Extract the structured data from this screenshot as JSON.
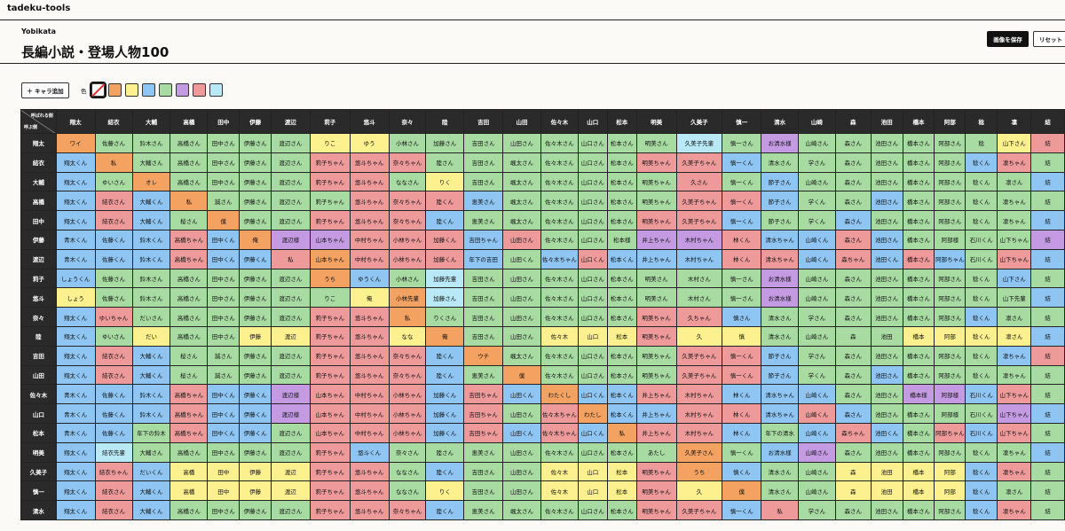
{
  "app": {
    "name": "tadeku-tools"
  },
  "header": {
    "subtitle": "Yobikata",
    "title": "長編小説・登場人物100",
    "save_label": "画像を保存",
    "reset_label": "リセット"
  },
  "toolbar": {
    "add_label": "＋ キャラ追加",
    "color_label": "色",
    "swatches": [
      {
        "name": "none",
        "color": "#ffffff"
      },
      {
        "name": "orange",
        "color": "#f4a261"
      },
      {
        "name": "yellow",
        "color": "#fdf08f"
      },
      {
        "name": "blue",
        "color": "#8ec5f2"
      },
      {
        "name": "green",
        "color": "#a7dba1"
      },
      {
        "name": "purple",
        "color": "#c49be3"
      },
      {
        "name": "red",
        "color": "#ef9a9a"
      },
      {
        "name": "cyan",
        "color": "#b9e8f7"
      }
    ]
  },
  "grid": {
    "corner_called": "呼ばれる側",
    "corner_caller": "呼ぶ側",
    "colors": {
      "o": "#f4a261",
      "y": "#fdf08f",
      "b": "#8ec5f2",
      "g": "#a7dba1",
      "p": "#c49be3",
      "r": "#ef9a9a",
      "c": "#b9e8f7",
      "w": "#ffffff"
    },
    "columns": [
      "翔太",
      "結衣",
      "大輔",
      "高橋",
      "田中",
      "伊藤",
      "渡辺",
      "莉子",
      "悠斗",
      "奈々",
      "陸",
      "吉田",
      "山田",
      "佐々木",
      "山口",
      "松本",
      "明美",
      "久美子",
      "慎一",
      "清水",
      "山崎",
      "森",
      "池田",
      "橋本",
      "阿部",
      "稔",
      "凛",
      "結"
    ],
    "rows": [
      {
        "name": "翔太",
        "cells": [
          "ワイ",
          "佐藤さん",
          "鈴木さん",
          "高橋さん",
          "田中さん",
          "伊藤さん",
          "渡辺さん",
          "りこ",
          "ゆう",
          "小林さん",
          "加藤さん",
          "吉田さん",
          "山田さん",
          "佐々木さん",
          "山口さん",
          "松本さん",
          "明美さん",
          "久美子先輩",
          "慎一さん",
          "お清水様",
          "山崎さん",
          "森さん",
          "池田さん",
          "橋本さん",
          "阿部さん",
          "稔",
          "山下さん",
          "結"
        ],
        "colors": "oggggggyyggggggggcgpggggggyrg"
      },
      {
        "name": "結衣",
        "cells": [
          "翔太くん",
          "私",
          "大輔さん",
          "高橋さん",
          "田中さん",
          "伊藤さん",
          "渡辺さん",
          "莉子ちゃん",
          "悠斗ちゃん",
          "奈々ちゃん",
          "陸さん",
          "吉田さん",
          "颯太さん",
          "佐々木さん",
          "山口さん",
          "松本さん",
          "明美ちゃん",
          "久美子ちゃん",
          "慎一くん",
          "清水さん",
          "学さん",
          "森さん",
          "池田さん",
          "橋本さん",
          "阿部さん",
          "稔くん",
          "凛ちゃん",
          "結"
        ],
        "colors": "bogggggrrrggggggrrbggggggbrg"
      },
      {
        "name": "大輔",
        "cells": [
          "翔太くん",
          "ゆいさん",
          "オレ",
          "高橋さん",
          "田中さん",
          "伊藤さん",
          "渡辺さん",
          "莉子ちゃん",
          "悠斗ちゃん",
          "ななさん",
          "りく",
          "吉田さん",
          "颯太さん",
          "佐々木さん",
          "山口さん",
          "松本さん",
          "明美ちゃん",
          "久さん",
          "慎一くん",
          "節子さん",
          "山崎さん",
          "森さん",
          "池田さん",
          "橋本さん",
          "阿部さん",
          "稔くん",
          "凛さん",
          "結"
        ],
        "colors": "bgoggggrrgyggggggrgbgggggggbgg"
      },
      {
        "name": "高橋",
        "cells": [
          "翔太くん",
          "結衣さん",
          "大輔くん",
          "私",
          "誠さん",
          "伊藤さん",
          "渡辺さん",
          "莉子ちゃん",
          "悠斗ちゃん",
          "奈々ちゃん",
          "陸くん",
          "恵美さん",
          "颯太さん",
          "佐々木さん",
          "山口さん",
          "松本さん",
          "明美ちゃん",
          "久美子ちゃん",
          "慎一くん",
          "節子さん",
          "学くん",
          "森さん",
          "池田さん",
          "橋本さん",
          "阿部さん",
          "稔くん",
          "凛ちゃん",
          "結"
        ],
        "colors": "brboggggrrrbgggggrrbggbgggggbrg"
      },
      {
        "name": "田中",
        "cells": [
          "翔太くん",
          "結衣さん",
          "大輔くん",
          "桜さん",
          "僕",
          "伊藤さん",
          "渡辺さん",
          "莉子ちゃん",
          "悠斗ちゃん",
          "奈々ちゃん",
          "陸くん",
          "恵美さん",
          "颯太さん",
          "佐々木さん",
          "山口さん",
          "松本さん",
          "明美ちゃん",
          "久美子ちゃん",
          "慎一くん",
          "節子さん",
          "学くん",
          "森さん",
          "池田さん",
          "橋本さん",
          "阿部さん",
          "稔くん",
          "凛ちゃん",
          "結"
        ],
        "colors": "brbgoggrrrbgggggrrbggbgggggbrg"
      },
      {
        "name": "伊藤",
        "cells": [
          "青木くん",
          "佐藤くん",
          "鈴木くん",
          "高橋ちゃん",
          "田中くん",
          "俺",
          "渡辺様",
          "山本ちゃん",
          "中村ちゃん",
          "小林ちゃん",
          "加藤くん",
          "吉田ちゃん",
          "山田さん",
          "佐々木さん",
          "山口さん",
          "松本様",
          "井上ちゃん",
          "木村ちゃん",
          "林くん",
          "清水ちゃん",
          "山崎くん",
          "森さん",
          "池田さん",
          "橋本さん",
          "阿部様",
          "石川くん",
          "山下ちゃん",
          "結"
        ],
        "colors": "bbbrbopprrrbrgggpprbbrbggggpbrg"
      },
      {
        "name": "渡辺",
        "cells": [
          "青木くん",
          "佐藤くん",
          "鈴木くん",
          "高橋ちゃん",
          "田中くん",
          "伊藤くん",
          "私",
          "山本ちゃん",
          "中村ちゃん",
          "小林ちゃん",
          "加藤くん",
          "年下の吉田",
          "山田くん",
          "佐々木ちゃん",
          "山口くん",
          "松本くん",
          "井上ちゃん",
          "木村ちゃん",
          "林くん",
          "清水ちゃん",
          "山崎くん",
          "森ちゃん",
          "池田くん",
          "橋本さん",
          "阿部ちゃん",
          "石川くん",
          "山下ちゃん",
          "結"
        ],
        "colors": "bbbrbbrorrrbgbrbbbrrbrbrbgrbrg"
      },
      {
        "name": "莉子",
        "cells": [
          "しょうくん",
          "佐藤さん",
          "鈴木さん",
          "高橋さん",
          "田中さん",
          "伊藤さん",
          "渡辺さん",
          "うち",
          "ゆうくん",
          "小林さん",
          "加藤先輩",
          "吉田さん",
          "山田さん",
          "佐々木さん",
          "山口さん",
          "松本さん",
          "明美さん",
          "木村さん",
          "慎一さん",
          "お清水様",
          "山崎さん",
          "森さん",
          "池田さん",
          "橋本さん",
          "阿部さん",
          "稔くん",
          "山下さん",
          "結"
        ],
        "colors": "bggggggobgcggggggggpggggggbgg"
      },
      {
        "name": "悠斗",
        "cells": [
          "しょう",
          "佐藤さん",
          "鈴木さん",
          "高橋さん",
          "田中さん",
          "伊藤さん",
          "渡辺さん",
          "りこ",
          "俺",
          "小林先輩",
          "加藤さん",
          "吉田さん",
          "山田さん",
          "佐々木さん",
          "山口さん",
          "松本さん",
          "明美さん",
          "木村さん",
          "慎一さん",
          "お清水様",
          "山崎さん",
          "森さん",
          "池田さん",
          "橋本さん",
          "阿部さん",
          "稔くん",
          "山下先輩",
          "結"
        ],
        "colors": "ygggggggyocggggggggpgggggggbcg"
      },
      {
        "name": "奈々",
        "cells": [
          "翔太くん",
          "ゆいちゃん",
          "だいさん",
          "高橋さん",
          "田中さん",
          "伊藤さん",
          "渡辺さん",
          "莉子ちゃん",
          "悠斗ちゃん",
          "私",
          "りくさん",
          "吉田さん",
          "山田さん",
          "佐々木さん",
          "山口さん",
          "松本さん",
          "明美ちゃん",
          "久ちゃん",
          "慎さん",
          "清水さん",
          "学さん",
          "森さん",
          "池田さん",
          "橋本さん",
          "阿部さん",
          "稔くん",
          "凛さん",
          "結"
        ],
        "colors": "brgggggrroggggggrrbggggggbgg"
      },
      {
        "name": "陸",
        "cells": [
          "翔太くん",
          "ゆいさん",
          "だい",
          "高橋さん",
          "田中さん",
          "伊藤",
          "渡辺",
          "莉子ちゃん",
          "悠斗ちゃん",
          "なな",
          "俺",
          "吉田さん",
          "山田さん",
          "佐々木",
          "山口",
          "松本",
          "明美ちゃん",
          "久",
          "慎",
          "清水さん",
          "山崎さん",
          "森",
          "池田",
          "橋本",
          "阿部",
          "稔くん",
          "凛さん",
          "結"
        ],
        "colors": "bgyggyyrryoggyyyryyggggyyyybgg"
      },
      {
        "name": "吉田",
        "cells": [
          "翔太くん",
          "結衣さん",
          "大輔くん",
          "桜さん",
          "誠さん",
          "伊藤さん",
          "渡辺さん",
          "莉子ちゃん",
          "悠斗ちゃん",
          "奈々ちゃん",
          "陸くん",
          "ウチ",
          "颯太さん",
          "佐々木さん",
          "山口さん",
          "松本さん",
          "明美ちゃん",
          "久美子ちゃん",
          "慎一くん",
          "節子さん",
          "学さん",
          "森さん",
          "池田さん",
          "橋本さん",
          "阿部さん",
          "稔くん",
          "凛ちゃん",
          "結"
        ],
        "colors": "brbggggrrrbogggggrrbggggggbrg"
      },
      {
        "name": "山田",
        "cells": [
          "翔太くん",
          "結衣さん",
          "大輔くん",
          "桜さん",
          "誠さん",
          "伊藤さん",
          "渡辺さん",
          "莉子ちゃん",
          "悠斗ちゃん",
          "奈々ちゃん",
          "陸くん",
          "恵美さん",
          "僕",
          "佐々木さん",
          "山口さん",
          "松本さん",
          "明美ちゃん",
          "久美子ちゃん",
          "慎一くん",
          "節子さん",
          "学くん",
          "森さん",
          "池田さん",
          "橋本さん",
          "阿部さん",
          "稔くん",
          "凛ちゃん",
          "結"
        ],
        "colors": "brbggggrrrbgoggggrrbggbgggggbrg"
      },
      {
        "name": "佐々木",
        "cells": [
          "青木くん",
          "佐藤くん",
          "鈴木くん",
          "高橋ちゃん",
          "田中くん",
          "伊藤くん",
          "渡辺様",
          "山本ちゃん",
          "中村ちゃん",
          "小林ちゃん",
          "加藤くん",
          "吉田ちゃん",
          "山田くん",
          "わたくし",
          "山口くん",
          "松本くん",
          "井上ちゃん",
          "木村ちゃん",
          "林くん",
          "清水ちゃん",
          "山崎くん",
          "森さん",
          "池田さん",
          "橋本様",
          "阿部様",
          "石川くん",
          "山下ちゃん",
          "結"
        ],
        "colors": "bbbrbbprrrbrbobbrrbbbggppbrg"
      },
      {
        "name": "山口",
        "cells": [
          "青木くん",
          "佐藤くん",
          "鈴木くん",
          "高橋ちゃん",
          "田中くん",
          "伊藤くん",
          "渡辺様",
          "山本ちゃん",
          "中村ちゃん",
          "小林ちゃん",
          "加藤くん",
          "吉田ちゃん",
          "山田さん",
          "佐々木ちゃん",
          "わたし",
          "松本くん",
          "井上ちゃん",
          "木村ちゃん",
          "林くん",
          "清水ちゃん",
          "山崎くん",
          "森さん",
          "池田さん",
          "橋本さん",
          "阿部様",
          "石川くん",
          "山下ちゃん",
          "結"
        ],
        "colors": "bbbrbbprrrbrgrobbrrbrbggggpbrg"
      },
      {
        "name": "松本",
        "cells": [
          "青木くん",
          "佐藤くん",
          "年下の鈴木",
          "高橋ちゃん",
          "田中くん",
          "伊藤くん",
          "渡辺さん",
          "山本ちゃん",
          "中村ちゃん",
          "小林ちゃん",
          "加藤くん",
          "吉田ちゃん",
          "山田くん",
          "佐々木ちゃん",
          "山口くん",
          "私",
          "井上ちゃん",
          "木村ちゃん",
          "林くん",
          "年下の清水",
          "山崎くん",
          "森ちゃん",
          "池田くん",
          "橋本さん",
          "阿部ちゃん",
          "石川くん",
          "山下ちゃん",
          "結"
        ],
        "colors": "bbgrbbgrrrbrbrborrbgbrbgrbrg"
      },
      {
        "name": "明美",
        "cells": [
          "翔太くん",
          "結衣先輩",
          "大輔さん",
          "高橋さん",
          "田中さん",
          "伊藤さん",
          "渡辺さん",
          "莉子ちゃん",
          "悠斗くん",
          "奈々さん",
          "陸さん",
          "恵美さん",
          "山田さん",
          "佐々木さん",
          "山口さん",
          "松本さん",
          "あたし",
          "久美子さん",
          "慎一くん",
          "お清水様",
          "山崎さん",
          "森さん",
          "池田さん",
          "橋本さん",
          "阿部さん",
          "稔くん",
          "凛ちゃん",
          "結"
        ],
        "colors": "bcgggggrbggggggggogbpggggggbrg"
      },
      {
        "name": "久美子",
        "cells": [
          "翔太くん",
          "結衣ちゃん",
          "だいくん",
          "高橋",
          "田中",
          "伊藤",
          "渡辺",
          "莉子ちゃん",
          "悠斗ちゃん",
          "ななさん",
          "陸くん",
          "吉田さん",
          "山田さん",
          "佐々木",
          "山口",
          "松本",
          "明美ちゃん",
          "うち",
          "慎くん",
          "清水さん",
          "山崎さん",
          "森",
          "池田",
          "橋本",
          "阿部",
          "稔くん",
          "凛ちゃん",
          "結"
        ],
        "colors": "brbyyyyrrgbggyyyrobggyyyybrg"
      },
      {
        "name": "慎一",
        "cells": [
          "翔太くん",
          "結衣さん",
          "大輔くん",
          "高橋",
          "田中",
          "伊藤",
          "渡辺",
          "莉子ちゃん",
          "悠斗ちゃん",
          "ななさん",
          "りく",
          "吉田さん",
          "山田さん",
          "佐々木",
          "山口",
          "松本",
          "明美ちゃん",
          "久",
          "僕",
          "清水さん",
          "山崎さん",
          "森",
          "池田",
          "橋本",
          "阿部",
          "稔くん",
          "凛さん",
          "結"
        ],
        "colors": "brbyyyyrrgyggyyyryoggyyyybgg"
      },
      {
        "name": "清水",
        "cells": [
          "翔太くん",
          "結衣さん",
          "大輔くん",
          "高橋さん",
          "田中さん",
          "伊藤さん",
          "渡辺さん",
          "莉子ちゃん",
          "悠斗ちゃん",
          "奈々ちゃん",
          "陸くん",
          "恵美さん",
          "颯太さん",
          "佐々木さん",
          "山口さん",
          "松本さん",
          "明美ちゃん",
          "久美子ちゃん",
          "慎一くん",
          "私",
          "学さん",
          "森さん",
          "池田さん",
          "橋本さん",
          "阿部さん",
          "稔くん",
          "凛ちゃん",
          "結"
        ],
        "colors": "brbggggrrrbgggggrrbrgggggbrg"
      }
    ]
  }
}
